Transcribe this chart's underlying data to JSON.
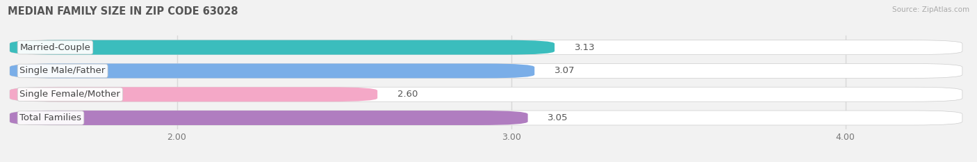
{
  "title": "MEDIAN FAMILY SIZE IN ZIP CODE 63028",
  "source": "Source: ZipAtlas.com",
  "categories": [
    "Married-Couple",
    "Single Male/Father",
    "Single Female/Mother",
    "Total Families"
  ],
  "values": [
    3.13,
    3.07,
    2.6,
    3.05
  ],
  "bar_colors": [
    "#3bbdbd",
    "#7aaee8",
    "#f4a8c7",
    "#b07dc0"
  ],
  "xlim_left": 1.5,
  "xlim_right": 4.35,
  "xticks": [
    2.0,
    3.0,
    4.0
  ],
  "xtick_labels": [
    "2.00",
    "3.00",
    "4.00"
  ],
  "bar_height": 0.62,
  "label_fontsize": 9.5,
  "title_fontsize": 10.5,
  "value_fontsize": 9.5,
  "background_color": "#f2f2f2",
  "row_bg_color": "#ffffff",
  "grid_color": "#d8d8d8",
  "title_color": "#555555",
  "source_color": "#aaaaaa",
  "label_text_color": "#444444",
  "value_text_color": "#555555"
}
